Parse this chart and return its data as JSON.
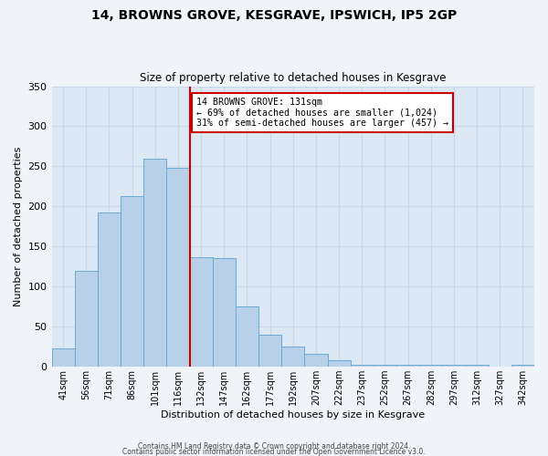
{
  "title_line1": "14, BROWNS GROVE, KESGRAVE, IPSWICH, IP5 2GP",
  "title_line2": "Size of property relative to detached houses in Kesgrave",
  "xlabel": "Distribution of detached houses by size in Kesgrave",
  "ylabel": "Number of detached properties",
  "bar_labels": [
    "41sqm",
    "56sqm",
    "71sqm",
    "86sqm",
    "101sqm",
    "116sqm",
    "132sqm",
    "147sqm",
    "162sqm",
    "177sqm",
    "192sqm",
    "207sqm",
    "222sqm",
    "237sqm",
    "252sqm",
    "267sqm",
    "282sqm",
    "297sqm",
    "312sqm",
    "327sqm",
    "342sqm"
  ],
  "bar_values": [
    23,
    120,
    192,
    213,
    260,
    248,
    137,
    136,
    75,
    40,
    25,
    16,
    8,
    3,
    3,
    2,
    2,
    2,
    2,
    0,
    2
  ],
  "bar_color": "#b8d0e8",
  "bar_edgecolor": "#6aaad4",
  "vline_color": "#cc0000",
  "annotation_text": "14 BROWNS GROVE: 131sqm\n← 69% of detached houses are smaller (1,024)\n31% of semi-detached houses are larger (457) →",
  "annotation_box_edgecolor": "#cc0000",
  "ylim": [
    0,
    350
  ],
  "yticks": [
    0,
    50,
    100,
    150,
    200,
    250,
    300,
    350
  ],
  "grid_color": "#c8d8ea",
  "bg_color": "#dce8f4",
  "fig_bg_color": "#f0f4f8",
  "footer_line1": "Contains HM Land Registry data © Crown copyright and database right 2024.",
  "footer_line2": "Contains public sector information licensed under the Open Government Licence v3.0."
}
